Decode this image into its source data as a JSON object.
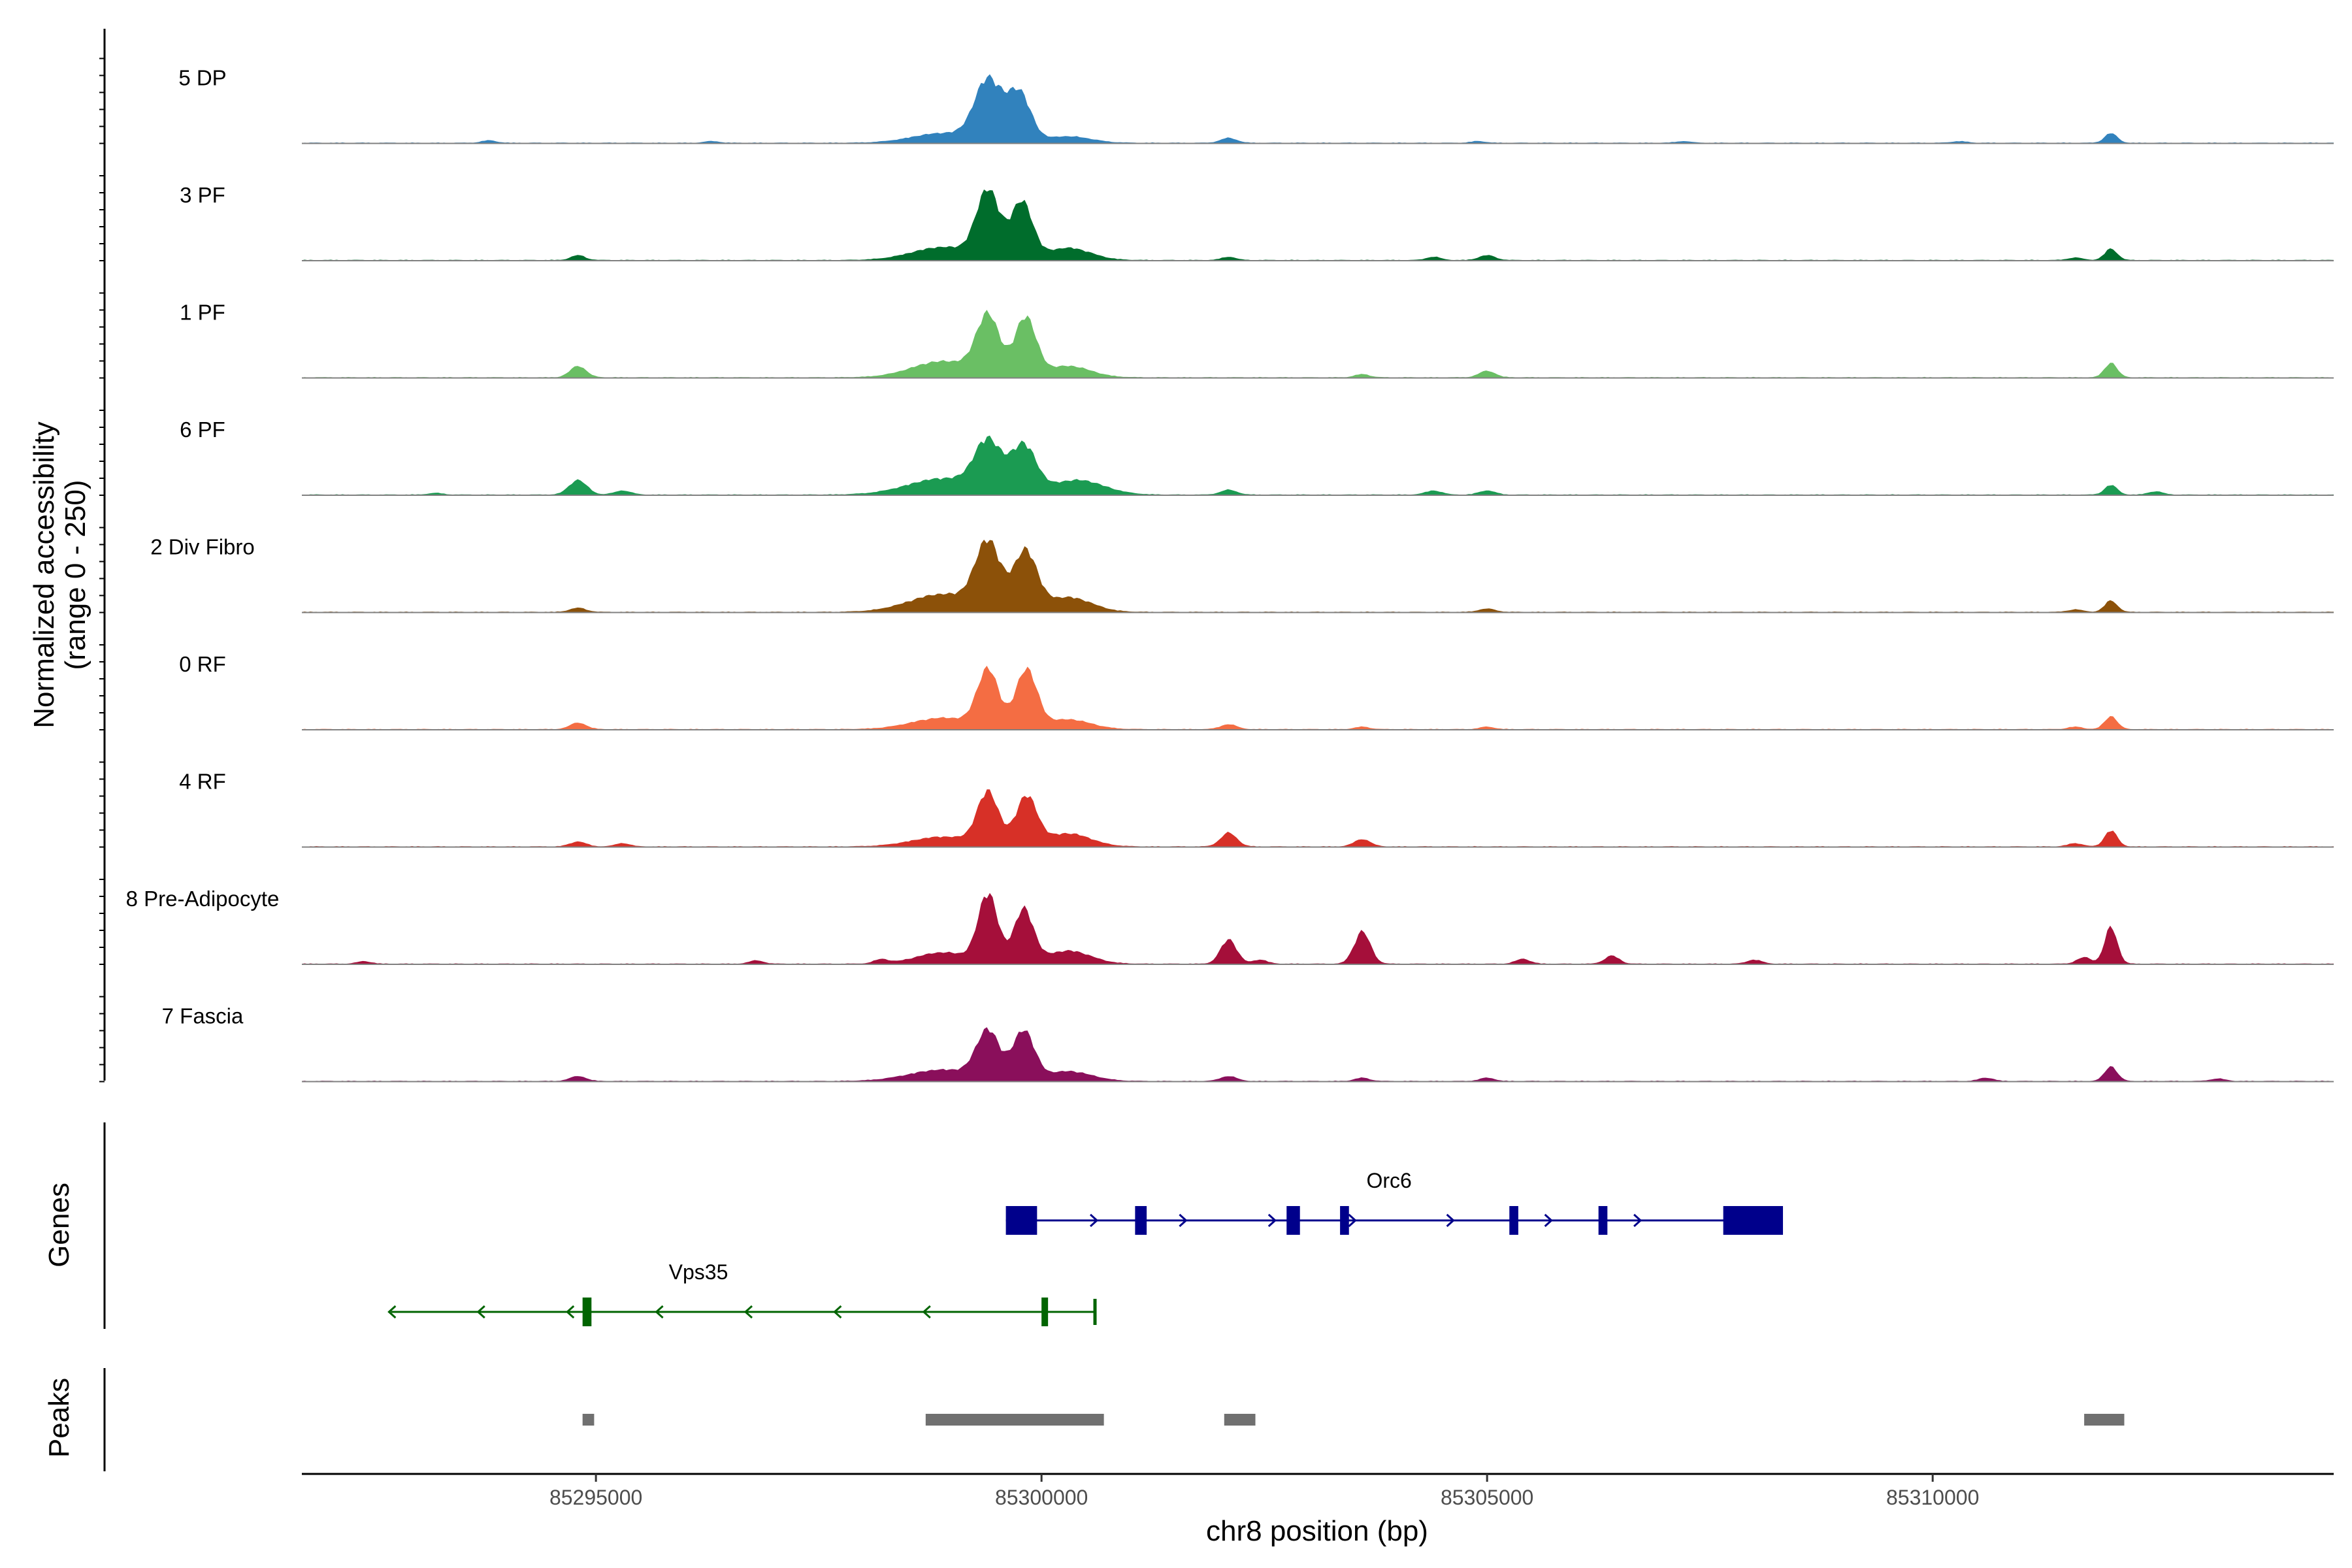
{
  "chart_data": {
    "type": "area",
    "title": "",
    "ylabel_line1": "Normalized accessibility",
    "ylabel_line2": "(range 0 - 250)",
    "yrange": [
      0,
      250
    ],
    "xlabel": "chr8 position (bp)",
    "xlim": [
      85291700,
      85314500
    ],
    "xticks": [
      {
        "value": 85295000,
        "label": "85295000"
      },
      {
        "value": 85300000,
        "label": "85300000"
      },
      {
        "value": 85305000,
        "label": "85305000"
      },
      {
        "value": 85310000,
        "label": "85310000"
      }
    ],
    "tracks": [
      {
        "name": "5 DP",
        "color": "#3182bd",
        "peaks": [
          [
            85299400,
            75,
            150
          ],
          [
            85299750,
            60,
            130
          ],
          [
            85298900,
            12,
            350
          ],
          [
            85300300,
            8,
            250
          ],
          [
            85302100,
            6,
            90
          ],
          [
            85312000,
            12,
            70
          ],
          [
            85293800,
            3,
            80
          ],
          [
            85296300,
            2,
            80
          ],
          [
            85304900,
            2,
            80
          ],
          [
            85307200,
            2,
            80
          ],
          [
            85310300,
            2,
            80
          ]
        ]
      },
      {
        "name": "3 PF",
        "color": "#006d2c",
        "peaks": [
          [
            85299400,
            82,
            130
          ],
          [
            85299780,
            70,
            120
          ],
          [
            85298900,
            16,
            350
          ],
          [
            85300300,
            15,
            250
          ],
          [
            85294800,
            6,
            80
          ],
          [
            85302100,
            4,
            80
          ],
          [
            85305000,
            6,
            90
          ],
          [
            85304400,
            4,
            80
          ],
          [
            85312000,
            14,
            70
          ],
          [
            85311600,
            3,
            80
          ]
        ]
      },
      {
        "name": "1 PF",
        "color": "#6abf64",
        "peaks": [
          [
            85299400,
            72,
            130
          ],
          [
            85299820,
            72,
            120
          ],
          [
            85298900,
            20,
            350
          ],
          [
            85300300,
            14,
            250
          ],
          [
            85294800,
            14,
            90
          ],
          [
            85305000,
            8,
            90
          ],
          [
            85303600,
            4,
            80
          ],
          [
            85312000,
            18,
            70
          ]
        ]
      },
      {
        "name": "6 PF",
        "color": "#1b9b52",
        "peaks": [
          [
            85299400,
            60,
            150
          ],
          [
            85299800,
            58,
            140
          ],
          [
            85298900,
            20,
            400
          ],
          [
            85300400,
            18,
            300
          ],
          [
            85294800,
            18,
            100
          ],
          [
            85295300,
            5,
            90
          ],
          [
            85302100,
            6,
            90
          ],
          [
            85304400,
            5,
            90
          ],
          [
            85305000,
            5,
            90
          ],
          [
            85312000,
            12,
            70
          ],
          [
            85312500,
            4,
            80
          ],
          [
            85293200,
            2,
            80
          ]
        ]
      },
      {
        "name": "2 Div Fibro",
        "color": "#8c5109",
        "peaks": [
          [
            85299400,
            80,
            140
          ],
          [
            85299820,
            72,
            130
          ],
          [
            85298900,
            22,
            380
          ],
          [
            85300300,
            18,
            260
          ],
          [
            85294800,
            5,
            90
          ],
          [
            85305000,
            4,
            90
          ],
          [
            85312000,
            14,
            70
          ],
          [
            85311600,
            3,
            80
          ]
        ]
      },
      {
        "name": "0 RF",
        "color": "#f46d43",
        "peaks": [
          [
            85299400,
            70,
            120
          ],
          [
            85299830,
            72,
            120
          ],
          [
            85298900,
            14,
            350
          ],
          [
            85300300,
            12,
            250
          ],
          [
            85294800,
            8,
            90
          ],
          [
            85302100,
            6,
            90
          ],
          [
            85303600,
            3,
            80
          ],
          [
            85305000,
            3,
            80
          ],
          [
            85312000,
            16,
            70
          ],
          [
            85311600,
            3,
            80
          ]
        ]
      },
      {
        "name": "4 RF",
        "color": "#d73027",
        "peaks": [
          [
            85299400,
            64,
            120
          ],
          [
            85299830,
            60,
            120
          ],
          [
            85298900,
            12,
            350
          ],
          [
            85300300,
            16,
            250
          ],
          [
            85294800,
            6,
            90
          ],
          [
            85295300,
            4,
            80
          ],
          [
            85302100,
            17,
            90
          ],
          [
            85303600,
            9,
            90
          ],
          [
            85312000,
            20,
            70
          ],
          [
            85311600,
            4,
            80
          ]
        ]
      },
      {
        "name": "8 Pre-Adipocyte",
        "color": "#a50f3a",
        "peaks": [
          [
            85299400,
            84,
            110
          ],
          [
            85299800,
            66,
            110
          ],
          [
            85298900,
            14,
            300
          ],
          [
            85300300,
            16,
            250
          ],
          [
            85302100,
            30,
            90
          ],
          [
            85302450,
            5,
            80
          ],
          [
            85303600,
            40,
            90
          ],
          [
            85305400,
            6,
            80
          ],
          [
            85306400,
            10,
            80
          ],
          [
            85308000,
            5,
            80
          ],
          [
            85312000,
            46,
            70
          ],
          [
            85311700,
            8,
            80
          ],
          [
            85292400,
            3,
            80
          ],
          [
            85296800,
            4,
            80
          ],
          [
            85298200,
            5,
            80
          ]
        ]
      },
      {
        "name": "7 Fascia",
        "color": "#8a0f5b",
        "peaks": [
          [
            85299400,
            58,
            130
          ],
          [
            85299800,
            60,
            120
          ],
          [
            85298900,
            14,
            380
          ],
          [
            85300300,
            12,
            260
          ],
          [
            85294800,
            6,
            90
          ],
          [
            85302100,
            6,
            90
          ],
          [
            85303600,
            4,
            80
          ],
          [
            85305000,
            4,
            80
          ],
          [
            85312000,
            18,
            70
          ],
          [
            85310600,
            4,
            80
          ],
          [
            85313200,
            3,
            80
          ]
        ]
      }
    ],
    "genes": [
      {
        "name": "Orc6",
        "strand": "+",
        "color": "#00008b",
        "start": 85299600,
        "end": 85308300,
        "exons": [
          [
            85299600,
            85299950
          ],
          [
            85301050,
            85301180
          ],
          [
            85302750,
            85302900
          ],
          [
            85303350,
            85303450
          ],
          [
            85305250,
            85305350
          ],
          [
            85306250,
            85306350
          ],
          [
            85307650,
            85308320
          ]
        ],
        "arrows": [
          85300600,
          85301600,
          85302600,
          85303500,
          85304600,
          85305700,
          85306700
        ]
      },
      {
        "name": "Vps35",
        "strand": "-",
        "color": "#006400",
        "start": 85292700,
        "end": 85300600,
        "exons": [
          [
            85294850,
            85294950
          ],
          [
            85300000,
            85300060
          ]
        ],
        "arrows": [
          85292700,
          85293700,
          85294700,
          85295700,
          85296700,
          85297700,
          85298700
        ]
      }
    ],
    "peaks_track": {
      "label": "Peaks",
      "color": "#707070",
      "regions": [
        [
          85294850,
          85294980
        ],
        [
          85298700,
          85300700
        ],
        [
          85302050,
          85302400
        ],
        [
          85311700,
          85312150
        ]
      ]
    },
    "genes_track_label": "Genes"
  }
}
